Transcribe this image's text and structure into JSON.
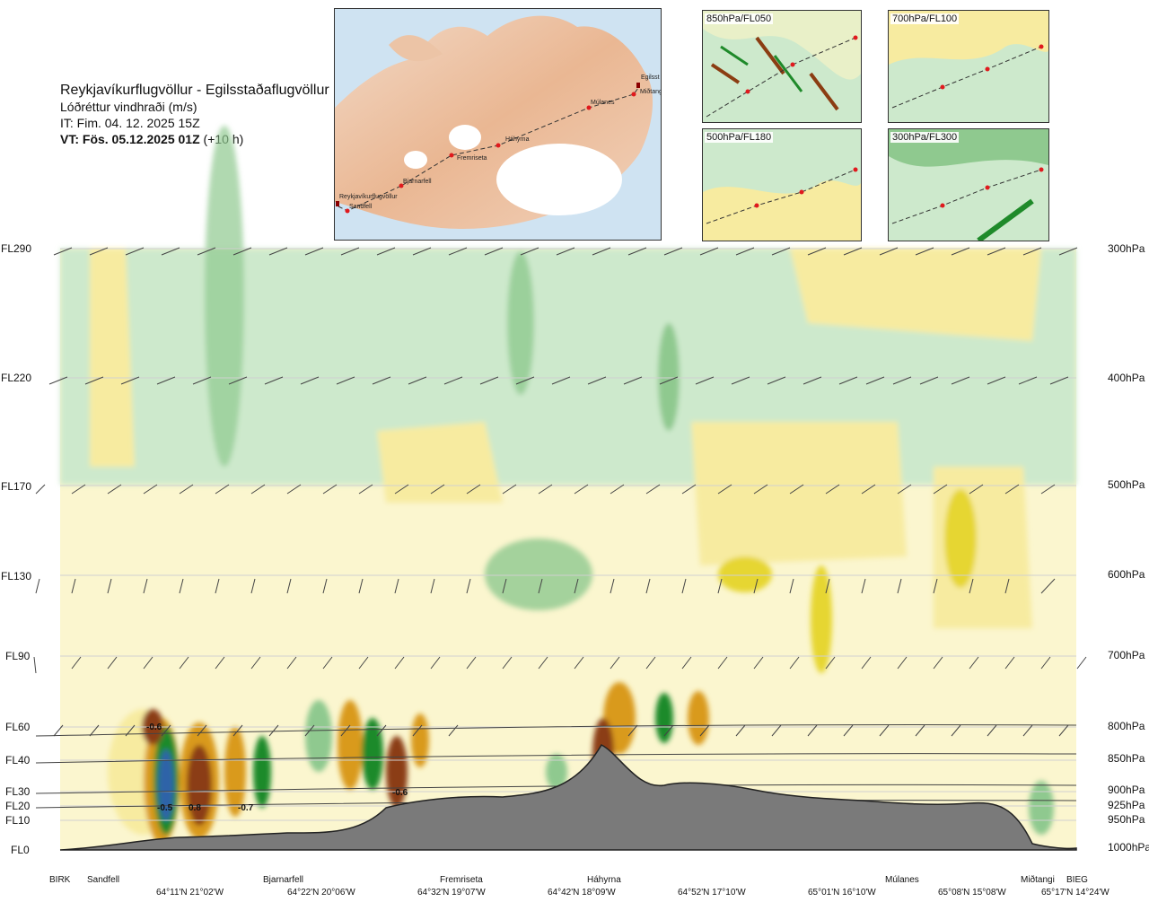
{
  "header": {
    "route": "Reykjavíkurflugvöllur - Egilsstaðaflugvöllur",
    "parameter": "Lóðréttur vindhraði (m/s)",
    "issue_time": "IT: Fim. 04. 12. 2025 15Z",
    "valid_label": "VT: Fös. 05.12.2025 01Z",
    "valid_offset": "(+10 h)"
  },
  "overview_map": {
    "waypoints": [
      "Reykjavíkurflugvöllur",
      "Sandfell",
      "Bjarnarfell",
      "Fremriseta",
      "Háhyrna",
      "Múlanes",
      "Miðtangi",
      "Egilsst"
    ]
  },
  "level_maps": [
    {
      "label": "850hPa/FL050"
    },
    {
      "label": "700hPa/FL100"
    },
    {
      "label": "500hPa/FL180"
    },
    {
      "label": "300hPa/FL300"
    }
  ],
  "flight_levels": [
    {
      "label": "FL290",
      "pressure": "300hPa"
    },
    {
      "label": "FL220",
      "pressure": "400hPa"
    },
    {
      "label": "FL170",
      "pressure": "500hPa"
    },
    {
      "label": "FL130",
      "pressure": "600hPa"
    },
    {
      "label": "FL90",
      "pressure": "700hPa"
    },
    {
      "label": "FL60",
      "pressure": "800hPa"
    },
    {
      "label": "FL40",
      "pressure": "850hPa"
    },
    {
      "label": "FL30",
      "pressure": "900hPa"
    },
    {
      "label": "FL20",
      "pressure": "925hPa"
    },
    {
      "label": "FL10",
      "pressure": "950hPa"
    },
    {
      "label": "FL0",
      "pressure": "1000hPa"
    }
  ],
  "locations": [
    "BIRK",
    "Sandfell",
    "Bjarnarfell",
    "Fremriseta",
    "Háhyrna",
    "Múlanes",
    "Miðtangi",
    "BIEG"
  ],
  "coordinates": [
    "64°11'N 21°02'W",
    "64°22'N 20°06'W",
    "64°32'N 19°07'W",
    "64°42'N 18°09'W",
    "64°52'N 17°10'W",
    "65°01'N 16°10'W",
    "65°08'N 15°08'W",
    "65°17'N 14°24'W"
  ],
  "value_labels": [
    "-0.6",
    "-0.5",
    "0.8",
    "-0.7",
    "-0.6"
  ],
  "colors": {
    "downdraft_light": "#cde9cc",
    "downdraft_mid": "#8fc98f",
    "downdraft_strong": "#1f8a2a",
    "downdraft_extreme": "#2f64a8",
    "updraft_light": "#f7eba0",
    "updraft_mid": "#e6d633",
    "updraft_strong": "#d99a1a",
    "updraft_extreme": "#8b3d12",
    "terrain": "#7a7a7a",
    "route_marker": "#e0191d"
  }
}
